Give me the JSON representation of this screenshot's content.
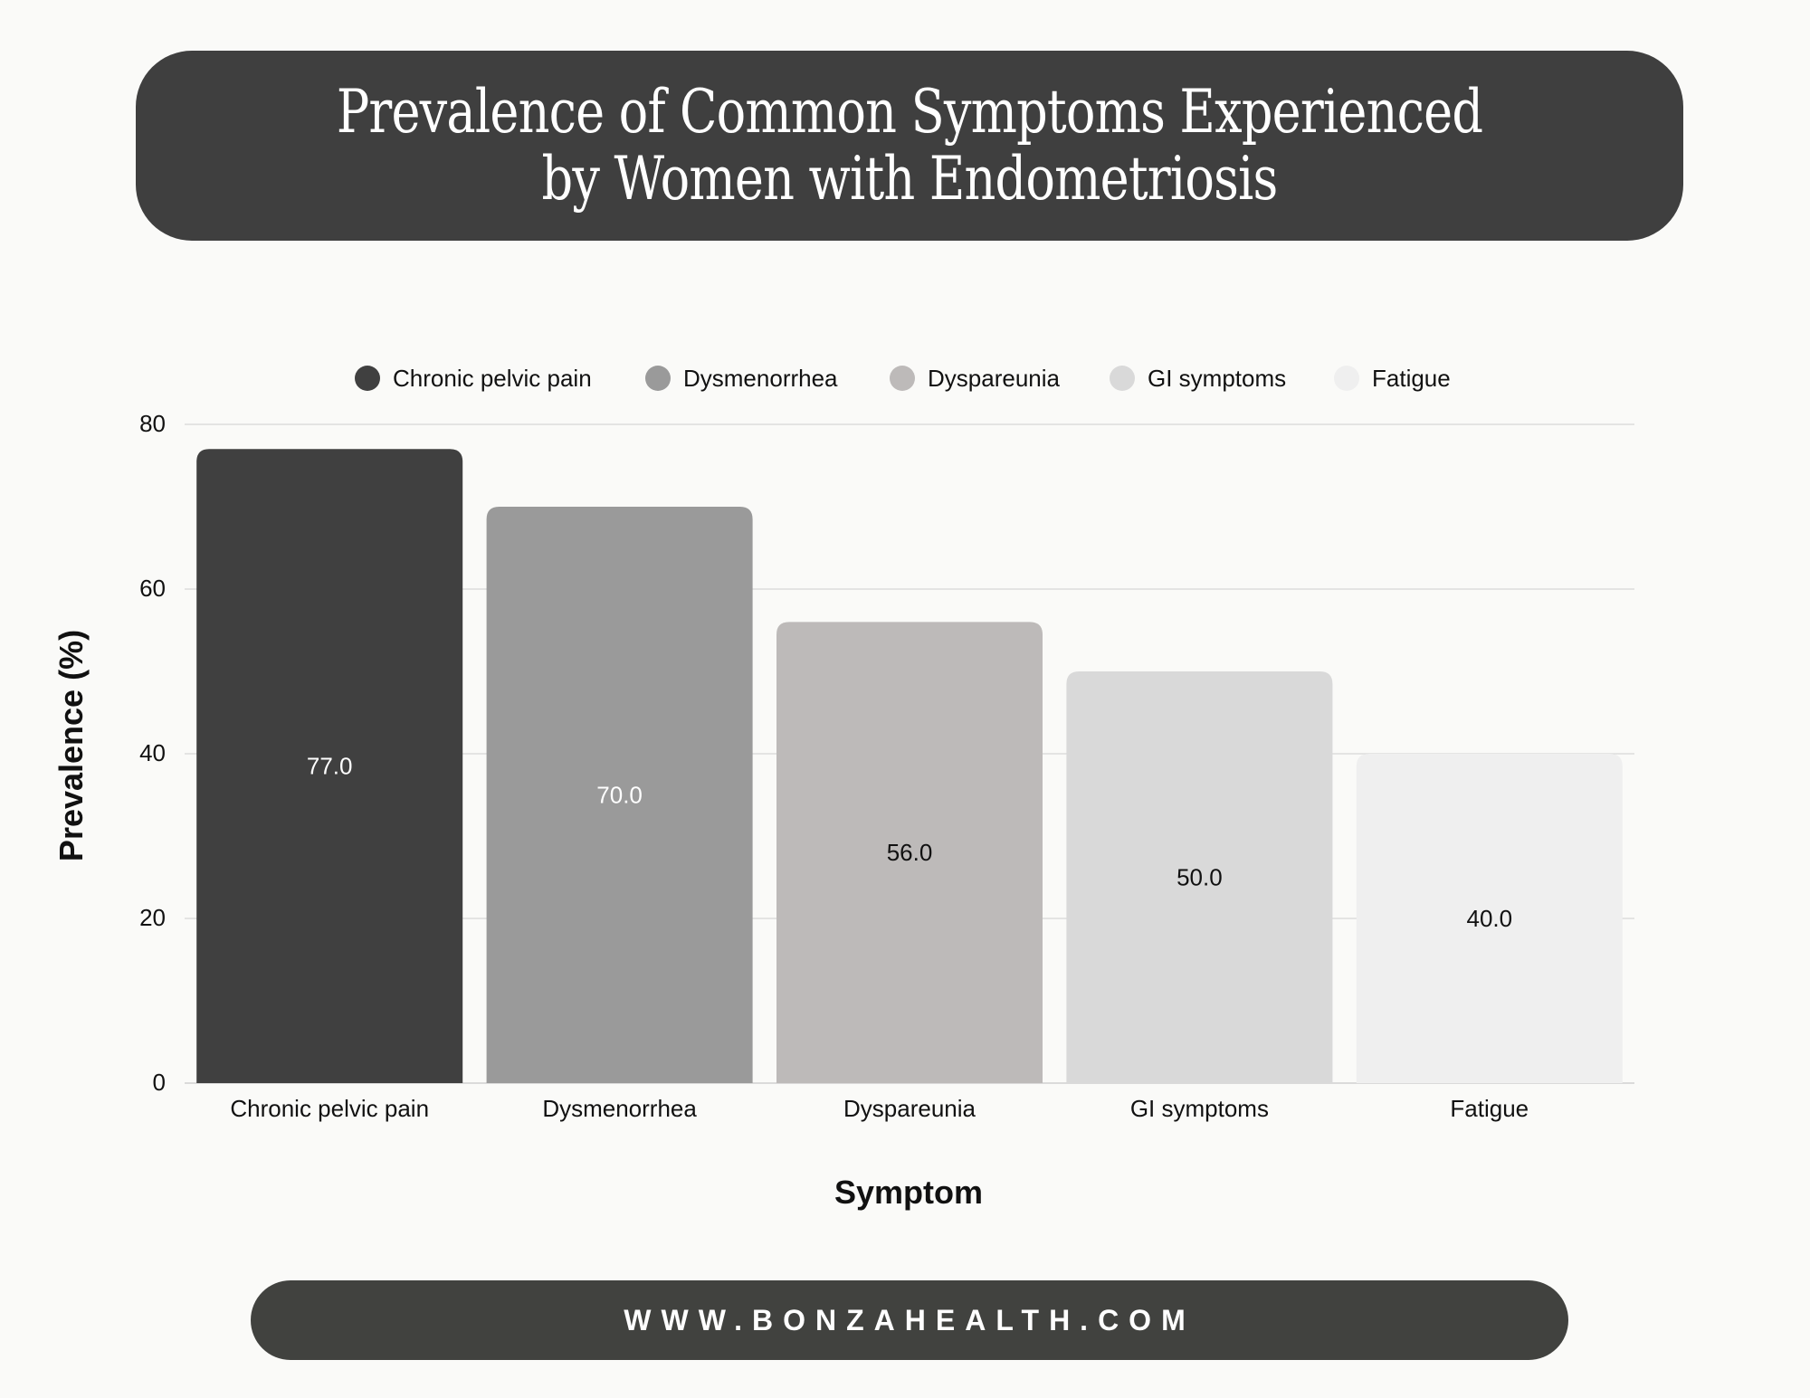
{
  "header": {
    "title": "Prevalence of Common Symptoms Experienced by Women with Endometriosis"
  },
  "footer": {
    "url": "WWW.BONZAHEALTH.COM"
  },
  "chart_data": {
    "type": "bar",
    "title": "Prevalence of Common Symptoms Experienced by Women with Endometriosis",
    "xlabel": "Symptom",
    "ylabel": "Prevalence (%)",
    "categories": [
      "Chronic pelvic pain",
      "Dysmenorrhea",
      "Dyspareunia",
      "GI symptoms",
      "Fatigue"
    ],
    "values": [
      77.0,
      70.0,
      56.0,
      50.0,
      40.0
    ],
    "data_labels": [
      "77.0",
      "70.0",
      "56.0",
      "50.0",
      "40.0"
    ],
    "colors": [
      "#404040",
      "#9a9a9a",
      "#bdbab9",
      "#d9d9d9",
      "#efefef"
    ],
    "label_colors": [
      "#ffffff",
      "#ffffff",
      "#111111",
      "#111111",
      "#111111"
    ],
    "yticks": [
      0,
      20,
      40,
      60,
      80
    ],
    "ylim": [
      0,
      80
    ],
    "grid": true,
    "legend": {
      "position": "top",
      "entries": [
        "Chronic pelvic pain",
        "Dysmenorrhea",
        "Dyspareunia",
        "GI symptoms",
        "Fatigue"
      ]
    }
  }
}
